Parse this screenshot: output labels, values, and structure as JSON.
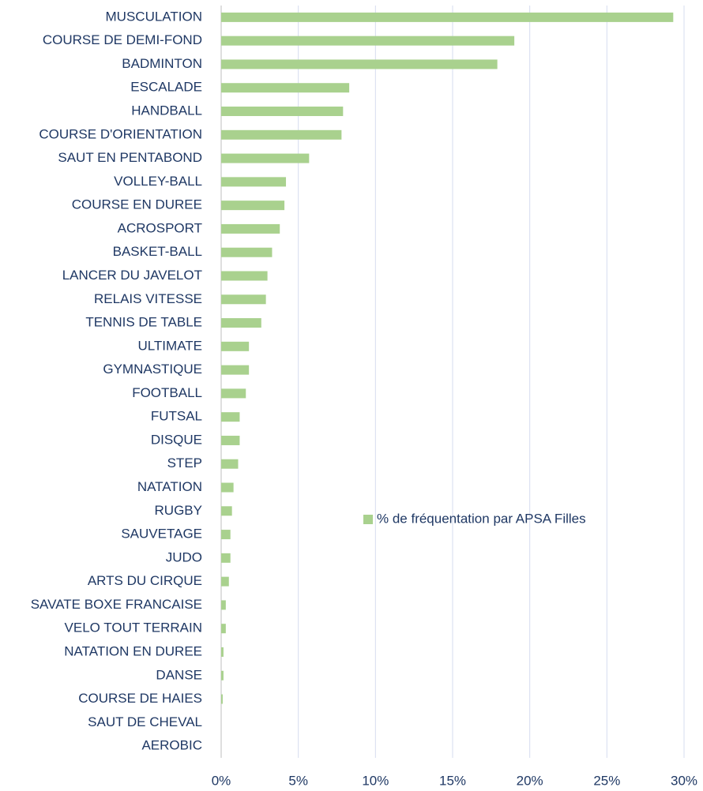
{
  "chart_data": {
    "type": "bar",
    "orientation": "horizontal",
    "categories": [
      "MUSCULATION",
      "COURSE DE DEMI-FOND",
      "BADMINTON",
      "ESCALADE",
      "HANDBALL",
      "COURSE D'ORIENTATION",
      "SAUT EN PENTABOND",
      "VOLLEY-BALL",
      "COURSE EN DUREE",
      "ACROSPORT",
      "BASKET-BALL",
      "LANCER DU JAVELOT",
      "RELAIS VITESSE",
      "TENNIS DE TABLE",
      "ULTIMATE",
      "GYMNASTIQUE",
      "FOOTBALL",
      "FUTSAL",
      "DISQUE",
      "STEP",
      "NATATION",
      "RUGBY",
      "SAUVETAGE",
      "JUDO",
      "ARTS DU CIRQUE",
      "SAVATE BOXE FRANCAISE",
      "VELO TOUT TERRAIN",
      "NATATION EN DUREE",
      "DANSE",
      "COURSE DE HAIES",
      "SAUT DE CHEVAL",
      "AEROBIC"
    ],
    "series": [
      {
        "name": "% de fréquentation par APSA Filles",
        "color": "#a9d18e",
        "values": [
          29.3,
          19.0,
          17.9,
          8.3,
          7.9,
          7.8,
          5.7,
          4.2,
          4.1,
          3.8,
          3.3,
          3.0,
          2.9,
          2.6,
          1.8,
          1.8,
          1.6,
          1.2,
          1.2,
          1.1,
          0.8,
          0.7,
          0.6,
          0.6,
          0.5,
          0.3,
          0.3,
          0.15,
          0.15,
          0.1,
          0,
          0
        ]
      }
    ],
    "xlim": [
      0,
      30
    ],
    "xticks": [
      {
        "value": 0,
        "label": "0%"
      },
      {
        "value": 5,
        "label": "5%"
      },
      {
        "value": 10,
        "label": "10%"
      },
      {
        "value": 15,
        "label": "15%"
      },
      {
        "value": 20,
        "label": "20%"
      },
      {
        "value": 25,
        "label": "25%"
      },
      {
        "value": 30,
        "label": "30%"
      }
    ],
    "grid": true
  }
}
